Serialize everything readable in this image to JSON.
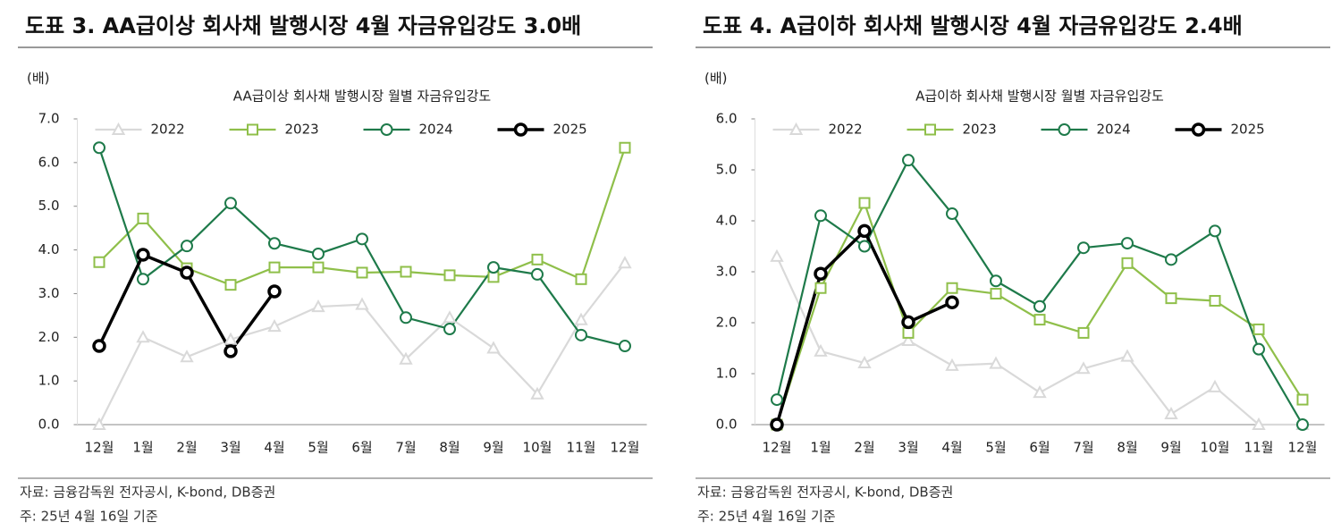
{
  "chart_data": [
    {
      "type": "line",
      "figure_title": "도표 3. AA급이상 회사채 발행시장 4월 자금유입강도 3.0배",
      "title": "AA급이상 회사채 발행시장 월별 자금유입강도",
      "y_unit": "(배)",
      "source": "자료: 금융감독원 전자공시, K-bond, DB증권",
      "note": "주: 25년 4월 16일 기준",
      "categories": [
        "12월",
        "1월",
        "2월",
        "3월",
        "4월",
        "5월",
        "6월",
        "7월",
        "8월",
        "9월",
        "10월",
        "11월",
        "12월"
      ],
      "ylim": [
        0,
        7
      ],
      "yticks": [
        {
          "value": 0,
          "label": "0.0"
        },
        {
          "value": 1,
          "label": "1.0"
        },
        {
          "value": 2,
          "label": "2.0"
        },
        {
          "value": 3,
          "label": "3.0"
        },
        {
          "value": 4,
          "label": "4.0"
        },
        {
          "value": 5,
          "label": "5.0"
        },
        {
          "value": 6,
          "label": "6.0"
        },
        {
          "value": 7,
          "label": "7.0"
        }
      ],
      "series": [
        {
          "name": "2022",
          "color": "#d9d9d9",
          "marker": "triangle",
          "values": [
            0,
            2.0,
            1.55,
            1.95,
            2.25,
            2.7,
            2.75,
            1.5,
            2.45,
            1.75,
            0.7,
            2.4,
            3.7
          ]
        },
        {
          "name": "2023",
          "color": "#8fbf4a",
          "marker": "square",
          "values": [
            3.72,
            4.72,
            3.58,
            3.2,
            3.6,
            3.6,
            3.48,
            3.5,
            3.42,
            3.38,
            3.78,
            3.33,
            6.34
          ]
        },
        {
          "name": "2024",
          "color": "#1e7a4a",
          "marker": "circle",
          "values": [
            6.34,
            3.33,
            4.09,
            5.07,
            4.15,
            3.91,
            4.25,
            2.45,
            2.19,
            3.6,
            3.44,
            2.05,
            1.8
          ]
        },
        {
          "name": "2025",
          "color": "#000000",
          "marker": "circle",
          "values": [
            1.8,
            3.89,
            3.48,
            1.68,
            3.05,
            null,
            null,
            null,
            null,
            null,
            null,
            null,
            null
          ]
        }
      ]
    },
    {
      "type": "line",
      "figure_title": "도표 4. A급이하 회사채 발행시장 4월 자금유입강도 2.4배",
      "title": "A급이하 회사채 발행시장 월별 자금유입강도",
      "y_unit": "(배)",
      "source": "자료: 금융감독원 전자공시, K-bond, DB증권",
      "note": "주: 25년 4월 16일 기준",
      "categories": [
        "12월",
        "1월",
        "2월",
        "3월",
        "4월",
        "5월",
        "6월",
        "7월",
        "8월",
        "9월",
        "10월",
        "11월",
        "12월"
      ],
      "ylim": [
        0,
        6
      ],
      "yticks": [
        {
          "value": 0,
          "label": "0.0"
        },
        {
          "value": 1,
          "label": "1.0"
        },
        {
          "value": 2,
          "label": "2.0"
        },
        {
          "value": 3,
          "label": "3.0"
        },
        {
          "value": 4,
          "label": "4.0"
        },
        {
          "value": 5,
          "label": "5.0"
        },
        {
          "value": 6,
          "label": "6.0"
        }
      ],
      "series": [
        {
          "name": "2022",
          "color": "#d9d9d9",
          "marker": "triangle",
          "values": [
            3.3,
            1.44,
            1.21,
            1.65,
            1.16,
            1.2,
            0.63,
            1.1,
            1.34,
            0.21,
            0.74,
            0,
            0
          ]
        },
        {
          "name": "2023",
          "color": "#8fbf4a",
          "marker": "square",
          "values": [
            0,
            2.68,
            4.35,
            1.8,
            2.68,
            2.57,
            2.06,
            1.8,
            3.17,
            2.48,
            2.43,
            1.87,
            0.49
          ]
        },
        {
          "name": "2024",
          "color": "#1e7a4a",
          "marker": "circle",
          "values": [
            0.49,
            4.1,
            3.5,
            5.19,
            4.14,
            2.82,
            2.32,
            3.47,
            3.56,
            3.24,
            3.8,
            1.48,
            0
          ]
        },
        {
          "name": "2025",
          "color": "#000000",
          "marker": "circle",
          "values": [
            0,
            2.96,
            3.8,
            2.01,
            2.4,
            null,
            null,
            null,
            null,
            null,
            null,
            null,
            null
          ]
        }
      ]
    }
  ]
}
